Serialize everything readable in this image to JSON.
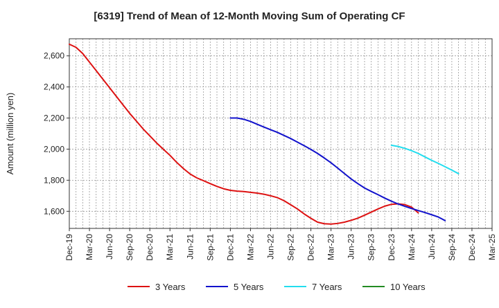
{
  "chart_data": {
    "type": "line",
    "title": "[6319]  Trend of Mean of 12-Month Moving Sum of Operating CF",
    "xlabel": "",
    "ylabel": "Amount (million yen)",
    "ylim": [
      1490,
      2710
    ],
    "yticks": [
      1600,
      1800,
      2000,
      2200,
      2400,
      2600
    ],
    "ytick_labels": [
      "1,600",
      "1,800",
      "2,000",
      "2,200",
      "2,400",
      "2,600"
    ],
    "x_categories": [
      "Dec-19",
      "Mar-20",
      "Jun-20",
      "Sep-20",
      "Dec-20",
      "Mar-21",
      "Jun-21",
      "Sep-21",
      "Dec-21",
      "Mar-22",
      "Jun-22",
      "Sep-22",
      "Dec-22",
      "Mar-23",
      "Jun-23",
      "Sep-23",
      "Dec-23",
      "Mar-24",
      "Jun-24",
      "Sep-24",
      "Dec-24",
      "Mar-25"
    ],
    "grid": true,
    "legend_position": "bottom",
    "series": [
      {
        "name": "3 Years",
        "color": "#dd1111",
        "start_index": 0,
        "values": [
          2675,
          2655,
          2615,
          2560,
          2505,
          2450,
          2395,
          2340,
          2285,
          2230,
          2180,
          2130,
          2085,
          2040,
          2000,
          1960,
          1915,
          1875,
          1840,
          1815,
          1797,
          1778,
          1760,
          1745,
          1735,
          1730,
          1727,
          1722,
          1717,
          1710,
          1700,
          1688,
          1668,
          1642,
          1615,
          1583,
          1555,
          1530,
          1520,
          1518,
          1522,
          1530,
          1542,
          1556,
          1575,
          1595,
          1615,
          1633,
          1645,
          1648,
          1643,
          1627,
          1590
        ]
      },
      {
        "name": "5 Years",
        "color": "#1111cc",
        "start_index": 24,
        "values": [
          2200,
          2200,
          2192,
          2178,
          2160,
          2142,
          2125,
          2108,
          2088,
          2068,
          2045,
          2022,
          1998,
          1972,
          1943,
          1912,
          1878,
          1843,
          1808,
          1778,
          1750,
          1728,
          1707,
          1685,
          1665,
          1647,
          1632,
          1618,
          1605,
          1592,
          1578,
          1563,
          1540
        ]
      },
      {
        "name": "7 Years",
        "color": "#22ddee",
        "start_index": 48,
        "values": [
          2025,
          2017,
          2005,
          1990,
          1972,
          1950,
          1928,
          1908,
          1887,
          1865,
          1842
        ]
      },
      {
        "name": "10 Years",
        "color": "#228b22",
        "start_index": 0,
        "values": []
      }
    ]
  }
}
